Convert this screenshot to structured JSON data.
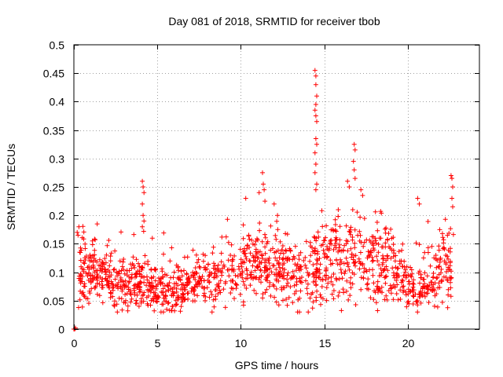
{
  "chart_data": {
    "type": "scatter",
    "title": "Day 081 of 2018, SRMTID for receiver tbob",
    "xlabel": "GPS time / hours",
    "ylabel": "SRMTID / TECUs",
    "xlim": [
      0,
      24.3
    ],
    "ylim": [
      0,
      0.5
    ],
    "xticks": [
      0,
      5,
      10,
      15,
      20
    ],
    "xtick_labels": [
      "0",
      "5",
      "10",
      "15",
      "20"
    ],
    "yticks": [
      0,
      0.05,
      0.1,
      0.15,
      0.2,
      0.25,
      0.3,
      0.35,
      0.4,
      0.45,
      0.5
    ],
    "ytick_labels": [
      "0",
      "0.05",
      "0.1",
      "0.15",
      "0.2",
      "0.25",
      "0.3",
      "0.35",
      "0.4",
      "0.45",
      "0.5"
    ],
    "grid": true,
    "marker": "+",
    "color": "#ff0000",
    "point_count": 1500,
    "series": [
      {
        "name": "SRMTID",
        "points": [
          [
            0.0,
            0.0
          ],
          [
            0.05,
            0.0
          ],
          [
            0.1,
            0.002
          ],
          [
            4.1,
            0.26
          ],
          [
            4.15,
            0.25
          ],
          [
            4.2,
            0.24
          ],
          [
            4.1,
            0.22
          ],
          [
            4.15,
            0.2
          ],
          [
            4.2,
            0.19
          ],
          [
            4.1,
            0.18
          ],
          [
            14.45,
            0.455
          ],
          [
            14.5,
            0.445
          ],
          [
            14.5,
            0.43
          ],
          [
            14.55,
            0.41
          ],
          [
            14.5,
            0.395
          ],
          [
            14.45,
            0.385
          ],
          [
            14.5,
            0.375
          ],
          [
            14.55,
            0.365
          ],
          [
            14.5,
            0.335
          ],
          [
            14.55,
            0.325
          ],
          [
            14.45,
            0.31
          ],
          [
            14.5,
            0.29
          ],
          [
            14.45,
            0.275
          ],
          [
            14.55,
            0.255
          ],
          [
            14.5,
            0.245
          ],
          [
            16.8,
            0.325
          ],
          [
            16.85,
            0.315
          ],
          [
            16.75,
            0.295
          ],
          [
            16.8,
            0.28
          ],
          [
            16.85,
            0.265
          ],
          [
            11.3,
            0.275
          ],
          [
            11.35,
            0.255
          ],
          [
            11.4,
            0.245
          ],
          [
            11.45,
            0.225
          ],
          [
            16.4,
            0.26
          ],
          [
            16.5,
            0.25
          ],
          [
            17.2,
            0.245
          ],
          [
            17.3,
            0.235
          ],
          [
            22.6,
            0.27
          ],
          [
            22.65,
            0.265
          ],
          [
            22.7,
            0.25
          ],
          [
            22.65,
            0.23
          ],
          [
            22.7,
            0.215
          ],
          [
            1.4,
            0.185
          ],
          [
            0.3,
            0.18
          ],
          [
            0.2,
            0.17
          ],
          [
            0.25,
            0.165
          ],
          [
            20.6,
            0.23
          ],
          [
            20.7,
            0.22
          ],
          [
            10.3,
            0.23
          ],
          [
            11.1,
            0.24
          ],
          [
            12.0,
            0.22
          ],
          [
            12.2,
            0.2
          ]
        ]
      }
    ]
  }
}
